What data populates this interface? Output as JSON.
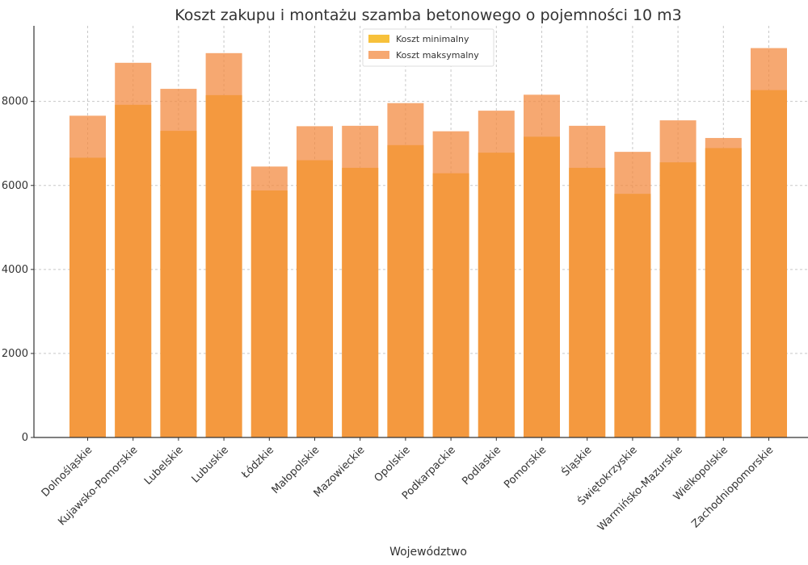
{
  "chart_data": {
    "type": "bar",
    "title": "Koszt zakupu i montażu szamba betonowego o pojemności 10 m3",
    "xlabel": "Województwo",
    "ylabel": "",
    "ylim": [
      0,
      9800
    ],
    "yticks": [
      0,
      2000,
      4000,
      6000,
      8000
    ],
    "grid": true,
    "legend_position": "top-center",
    "categories": [
      "Dolnośląskie",
      "Kujawsko-Pomorskie",
      "Lubelskie",
      "Lubuskie",
      "Łódzkie",
      "Małopolskie",
      "Mazowieckie",
      "Opolskie",
      "Podkarpackie",
      "Podlaskie",
      "Pomorskie",
      "Śląskie",
      "Świętokrzyskie",
      "Warmińsko-Mazurskie",
      "Wielkopolskie",
      "Zachodniopomorskie"
    ],
    "series": [
      {
        "name": "Koszt minimalny",
        "color": "#f7c13b",
        "values": [
          6660,
          7920,
          7300,
          8150,
          5880,
          6600,
          6420,
          6960,
          6290,
          6780,
          7160,
          6420,
          5800,
          6550,
          6890,
          8270
        ]
      },
      {
        "name": "Koszt maksymalny",
        "color": "#f38b41",
        "values": [
          7660,
          8920,
          8300,
          9150,
          6450,
          7410,
          7420,
          7960,
          7290,
          7780,
          8160,
          7420,
          6800,
          7550,
          7130,
          9270
        ]
      }
    ]
  }
}
